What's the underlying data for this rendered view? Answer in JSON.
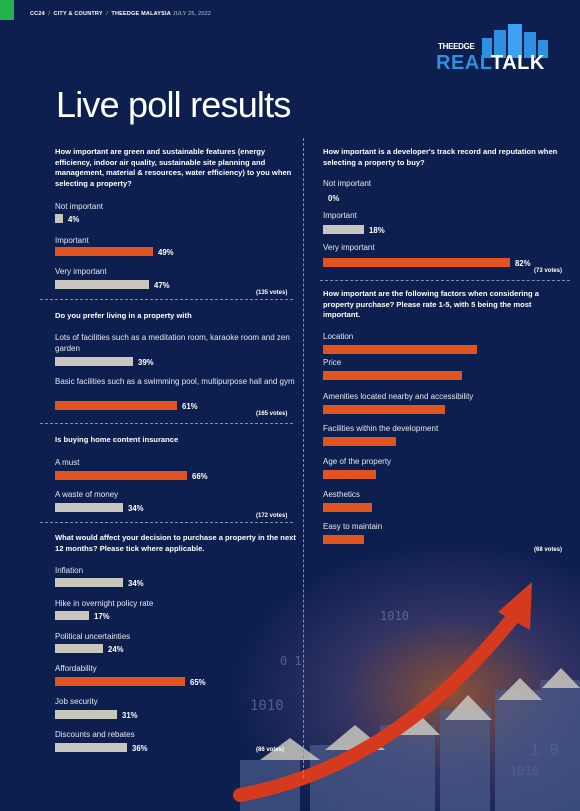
{
  "header": {
    "page_no": "CC24",
    "section": "CITY & COUNTRY",
    "publication": "THEEDGE MALAYSIA",
    "date": "JULY 25, 2022"
  },
  "logo": {
    "small": "THEEDGE",
    "real": "REAL",
    "talk": "TALK"
  },
  "page_title": "Live poll results",
  "colors": {
    "background": "#0c1f4e",
    "accent": "#e1541f",
    "neutral_bar": "#c9c6bd",
    "logo_blue": "#2f8fe0",
    "tab_green": "#22b24c"
  },
  "chart_data": [
    {
      "type": "bar",
      "title": "How important are green and sustainable features (energy efficiency, indoor air quality, sustainable site planning and management, material & resources, water efficiency) to you when selecting a property?",
      "categories": [
        "Not important",
        "Important",
        "Very important"
      ],
      "values": [
        4,
        49,
        47
      ],
      "value_labels": [
        "4%",
        "49%",
        "47%"
      ],
      "highlight": [
        false,
        true,
        false
      ],
      "votes": "(135 votes)",
      "xlim": [
        0,
        100
      ]
    },
    {
      "type": "bar",
      "title": "Do you prefer living in a property with",
      "categories": [
        "Lots of facilities such as a meditation room, karaoke room and zen garden",
        "Basic facilities such as a swimming pool, multipurpose hall and gym"
      ],
      "values": [
        39,
        61
      ],
      "value_labels": [
        "39%",
        "61%"
      ],
      "highlight": [
        false,
        true
      ],
      "votes": "(165 votes)",
      "xlim": [
        0,
        100
      ]
    },
    {
      "type": "bar",
      "title": "Is buying home content insurance",
      "categories": [
        "A must",
        "A waste of money"
      ],
      "values": [
        66,
        34
      ],
      "value_labels": [
        "66%",
        "34%"
      ],
      "highlight": [
        true,
        false
      ],
      "votes": "(172 votes)",
      "xlim": [
        0,
        100
      ]
    },
    {
      "type": "bar",
      "title": "What would affect your decision to purchase a property in the next 12 months? Please tick where applicable.",
      "categories": [
        "Inflation",
        "Hike in overnight policy rate",
        "Political uncertainties",
        "Affordability",
        "Job security",
        "Discounts and rebates"
      ],
      "values": [
        34,
        17,
        24,
        65,
        31,
        36
      ],
      "value_labels": [
        "34%",
        "17%",
        "24%",
        "65%",
        "31%",
        "36%"
      ],
      "highlight": [
        false,
        false,
        false,
        true,
        false,
        false
      ],
      "votes": "(86 votes)",
      "xlim": [
        0,
        100
      ]
    },
    {
      "type": "bar",
      "title": "How important is a developer's track record and reputation when selecting a property to buy?",
      "categories": [
        "Not important",
        "Important",
        "Very important"
      ],
      "values": [
        0,
        18,
        82
      ],
      "value_labels": [
        "0%",
        "18%",
        "82%"
      ],
      "highlight": [
        false,
        false,
        true
      ],
      "votes": "(73 votes)",
      "xlim": [
        0,
        100
      ]
    },
    {
      "type": "bar",
      "title": "How important are the following factors when considering a property purchase? Please rate 1-5, with 5 being the most important.",
      "categories": [
        "Location",
        "Price",
        "Amenities located nearby and accessibility",
        "Facilities within the development",
        "Age of the property",
        "Aesthetics",
        "Easy to maintain"
      ],
      "values": [
        4.75,
        4.3,
        3.75,
        2.25,
        1.65,
        1.5,
        1.25
      ],
      "value_labels": [],
      "highlight": [
        true,
        true,
        true,
        true,
        true,
        true,
        true
      ],
      "votes": "(68 votes)",
      "xlim": [
        0,
        5
      ]
    }
  ]
}
